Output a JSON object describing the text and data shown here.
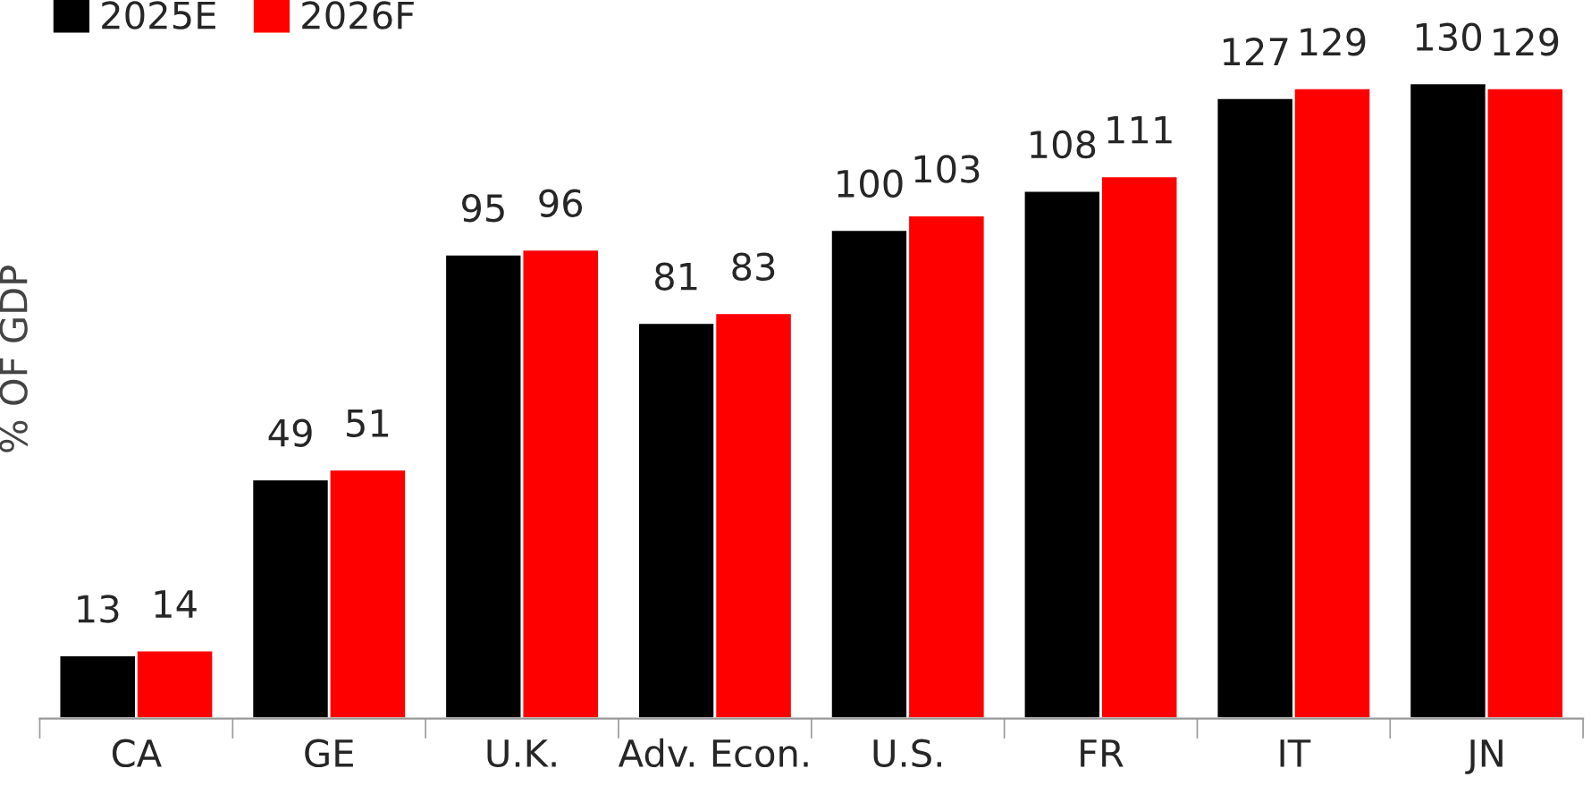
{
  "chart_data": {
    "type": "bar",
    "ylabel": "% OF GDP",
    "categories": [
      "CA",
      "GE",
      "U.K.",
      "Adv. Econ.",
      "U.S.",
      "FR",
      "IT",
      "JN"
    ],
    "series": [
      {
        "name": "2025E",
        "color": "#000000",
        "values": [
          13,
          49,
          95,
          81,
          100,
          108,
          127,
          130
        ]
      },
      {
        "name": "2026F",
        "color": "#ff0000",
        "values": [
          14,
          51,
          96,
          83,
          103,
          111,
          129,
          129
        ]
      }
    ],
    "ylim": [
      0,
      147
    ],
    "tick_labels": "x",
    "data_labels": true,
    "legend": "top left",
    "grid": false
  }
}
